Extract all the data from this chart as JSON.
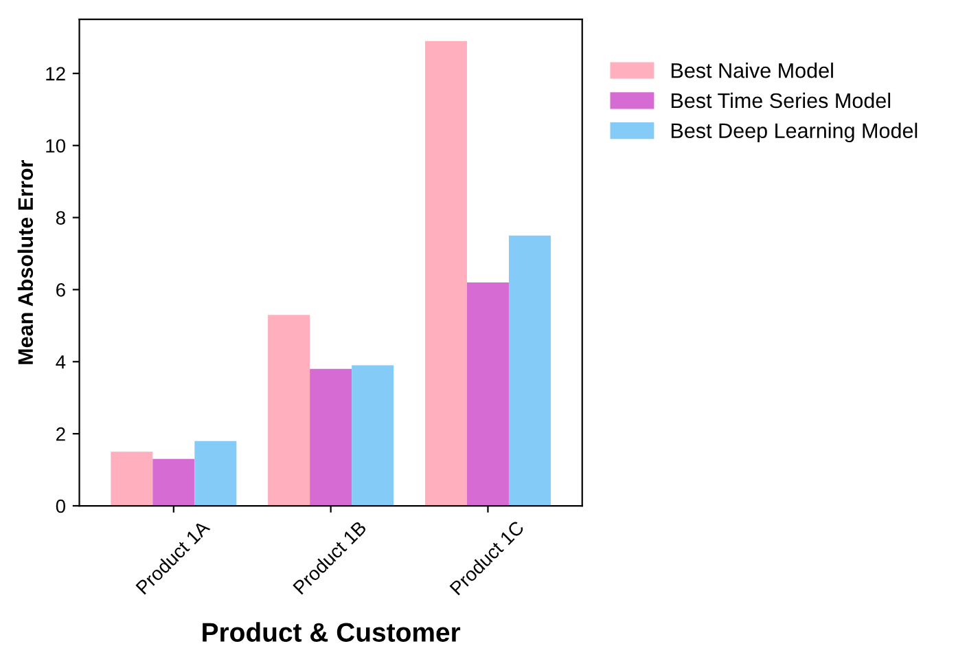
{
  "chart_data": {
    "type": "bar",
    "xlabel": "Product & Customer",
    "ylabel": "Mean Absolute Error",
    "categories": [
      "Product 1A",
      "Product 1B",
      "Product 1C"
    ],
    "series": [
      {
        "name": "Best Naive Model",
        "color": "#ffafbd",
        "values": [
          1.5,
          5.3,
          12.9
        ]
      },
      {
        "name": "Best Time Series Model",
        "color": "#d66bd3",
        "values": [
          1.3,
          3.8,
          6.2
        ]
      },
      {
        "name": "Best Deep Learning Model",
        "color": "#85cbf7",
        "values": [
          1.8,
          3.9,
          7.5
        ]
      }
    ],
    "ylim": [
      0,
      13.5
    ],
    "yticks": [
      0,
      2,
      4,
      6,
      8,
      10,
      12
    ],
    "grid": false,
    "legend": "right"
  }
}
